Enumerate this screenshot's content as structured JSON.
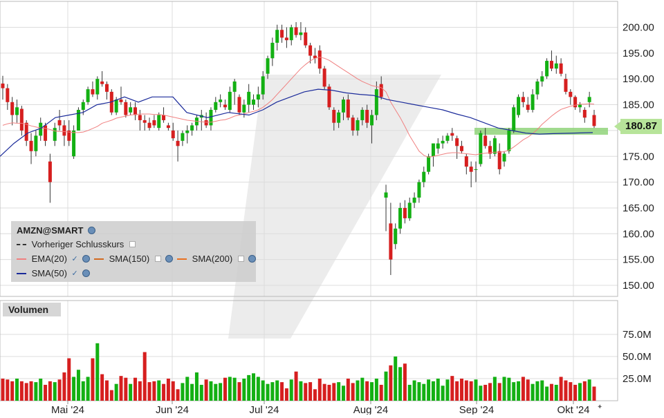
{
  "chart_data": {
    "type": "candlestick",
    "symbol": "AMZN@SMART",
    "last_price_label": "180.87",
    "price_axis": {
      "ylim": [
        147,
        202
      ],
      "ticks": [
        "150.00",
        "155.00",
        "160.00",
        "165.00",
        "170.00",
        "175.00",
        "180.00",
        "185.00",
        "190.00",
        "195.00",
        "200.00"
      ]
    },
    "volume_axis": {
      "ylim": [
        0,
        95
      ],
      "ticks": [
        "25.0M",
        "50.0M",
        "75.0M"
      ]
    },
    "volume_title": "Volumen",
    "x_labels": [
      "Mai '24",
      "Jun '24",
      "Jul '24",
      "Aug '24",
      "Sep '24",
      "Okt '24"
    ],
    "legend": {
      "title": "AMZN@SMART",
      "prev_close": "Vorheriger Schlusskurs",
      "ema20": "EMA(20)",
      "sma150": "SMA(150)",
      "sma200": "SMA(200)",
      "sma50": "SMA(50)"
    },
    "colors": {
      "up": "#13b013",
      "down": "#d61f1f",
      "ema20": "#f08080",
      "sma50": "#1a2a9a",
      "grid": "#dcdcdc"
    },
    "candles": [
      [
        189.1,
        190.6,
        186.0,
        188.2
      ],
      [
        188.2,
        189.0,
        184.0,
        185.5
      ],
      [
        185.5,
        186.5,
        181.0,
        183.0
      ],
      [
        183.0,
        186.0,
        181.5,
        184.5
      ],
      [
        184.2,
        184.8,
        179.0,
        180.0
      ],
      [
        181.5,
        182.0,
        177.0,
        178.0
      ],
      [
        178.0,
        179.5,
        173.5,
        176.0
      ],
      [
        176.0,
        180.0,
        175.0,
        179.0
      ],
      [
        179.0,
        182.5,
        178.0,
        181.5
      ],
      [
        181.0,
        181.5,
        177.0,
        178.0
      ],
      [
        174.0,
        175.5,
        166.0,
        170.0
      ],
      [
        178.0,
        181.5,
        177.0,
        180.5
      ],
      [
        182.0,
        184.0,
        180.0,
        181.0
      ],
      [
        181.0,
        182.0,
        177.0,
        179.0
      ],
      [
        180.0,
        182.0,
        177.0,
        178.0
      ],
      [
        175.0,
        181.0,
        174.5,
        180.0
      ],
      [
        180.0,
        184.5,
        180.0,
        184.0
      ],
      [
        184.0,
        186.0,
        183.0,
        185.5
      ],
      [
        185.5,
        188.5,
        185.0,
        188.0
      ],
      [
        188.0,
        189.5,
        186.5,
        187.0
      ],
      [
        187.0,
        190.5,
        186.0,
        190.0
      ],
      [
        189.5,
        191.5,
        188.5,
        189.0
      ],
      [
        189.0,
        189.5,
        186.0,
        187.5
      ],
      [
        187.5,
        188.0,
        183.0,
        183.5
      ],
      [
        183.5,
        186.5,
        183.0,
        186.0
      ],
      [
        186.0,
        188.5,
        185.0,
        185.5
      ],
      [
        185.5,
        186.0,
        182.5,
        183.0
      ],
      [
        183.5,
        185.5,
        183.0,
        184.5
      ],
      [
        184.5,
        185.5,
        182.0,
        183.0
      ],
      [
        183.0,
        184.0,
        180.0,
        182.0
      ],
      [
        182.0,
        183.0,
        180.0,
        181.5
      ],
      [
        181.5,
        182.5,
        180.0,
        180.5
      ],
      [
        182.0,
        183.0,
        180.5,
        181.0
      ],
      [
        180.5,
        183.5,
        180.0,
        183.0
      ],
      [
        183.0,
        184.5,
        181.5,
        182.0
      ],
      [
        181.0,
        181.5,
        180.0,
        180.5
      ],
      [
        180.0,
        181.5,
        178.0,
        178.5
      ],
      [
        178.0,
        180.0,
        174.0,
        177.0
      ],
      [
        178.0,
        180.0,
        177.0,
        179.5
      ],
      [
        179.5,
        181.0,
        177.5,
        180.0
      ],
      [
        180.0,
        181.5,
        179.0,
        181.0
      ],
      [
        181.0,
        183.0,
        180.0,
        182.5
      ],
      [
        182.5,
        184.0,
        180.0,
        183.0
      ],
      [
        182.0,
        183.5,
        180.5,
        181.0
      ],
      [
        181.0,
        184.5,
        180.0,
        184.0
      ],
      [
        184.0,
        186.5,
        183.5,
        185.5
      ],
      [
        185.5,
        187.0,
        184.5,
        186.0
      ],
      [
        185.0,
        186.0,
        184.0,
        184.5
      ],
      [
        184.0,
        188.5,
        183.5,
        187.5
      ],
      [
        187.5,
        190.0,
        185.0,
        189.5
      ],
      [
        186.5,
        187.0,
        183.0,
        183.5
      ],
      [
        183.5,
        186.0,
        182.5,
        185.0
      ],
      [
        185.0,
        189.0,
        183.5,
        187.5
      ],
      [
        185.0,
        187.0,
        184.0,
        186.0
      ],
      [
        186.0,
        188.5,
        184.5,
        187.0
      ],
      [
        187.0,
        191.5,
        186.0,
        190.5
      ],
      [
        191.0,
        194.5,
        190.0,
        194.0
      ],
      [
        194.0,
        198.0,
        192.5,
        197.0
      ],
      [
        197.0,
        200.5,
        195.5,
        199.5
      ],
      [
        199.5,
        200.5,
        197.0,
        198.0
      ],
      [
        198.0,
        200.0,
        196.0,
        197.5
      ],
      [
        197.5,
        200.5,
        196.5,
        200.0
      ],
      [
        200.0,
        201.0,
        198.0,
        198.5
      ],
      [
        198.5,
        201.0,
        197.5,
        199.0
      ],
      [
        199.0,
        200.0,
        196.0,
        196.5
      ],
      [
        196.5,
        197.0,
        193.0,
        194.5
      ],
      [
        194.5,
        196.0,
        193.0,
        194.0
      ],
      [
        195.5,
        196.5,
        191.0,
        192.0
      ],
      [
        192.0,
        192.5,
        188.0,
        188.5
      ],
      [
        188.5,
        189.0,
        184.0,
        184.5
      ],
      [
        184.0,
        184.5,
        180.0,
        181.5
      ],
      [
        181.5,
        184.0,
        180.5,
        183.5
      ],
      [
        183.5,
        186.5,
        182.0,
        186.0
      ],
      [
        186.0,
        187.0,
        182.0,
        182.5
      ],
      [
        182.5,
        183.0,
        179.0,
        180.0
      ],
      [
        180.0,
        182.5,
        179.0,
        182.0
      ],
      [
        182.0,
        184.5,
        181.0,
        184.0
      ],
      [
        184.0,
        185.0,
        180.5,
        181.5
      ],
      [
        181.0,
        184.0,
        177.5,
        183.0
      ],
      [
        183.0,
        189.5,
        182.0,
        188.0
      ],
      [
        189.0,
        190.5,
        186.0,
        186.5
      ],
      [
        167.0,
        169.5,
        160.5,
        168.0
      ],
      [
        162.0,
        166.0,
        152.0,
        155.0
      ],
      [
        158.0,
        162.0,
        157.0,
        161.0
      ],
      [
        161.0,
        166.0,
        160.0,
        165.0
      ],
      [
        165.0,
        166.5,
        162.0,
        163.0
      ],
      [
        163.0,
        167.0,
        162.5,
        166.0
      ],
      [
        166.0,
        168.0,
        165.0,
        167.0
      ],
      [
        167.0,
        170.5,
        166.0,
        170.0
      ],
      [
        170.0,
        173.0,
        169.0,
        172.0
      ],
      [
        172.0,
        175.5,
        171.5,
        175.0
      ],
      [
        175.0,
        177.5,
        173.0,
        177.5
      ],
      [
        176.5,
        178.5,
        175.5,
        177.5
      ],
      [
        177.5,
        179.0,
        176.5,
        178.0
      ],
      [
        178.0,
        179.5,
        177.5,
        179.0
      ],
      [
        179.5,
        180.5,
        178.0,
        179.0
      ],
      [
        178.5,
        179.0,
        174.5,
        177.0
      ],
      [
        177.0,
        178.0,
        175.5,
        176.0
      ],
      [
        175.0,
        175.5,
        171.5,
        173.0
      ],
      [
        173.0,
        174.0,
        169.0,
        172.0
      ],
      [
        172.5,
        174.0,
        170.0,
        172.5
      ],
      [
        173.5,
        180.0,
        173.0,
        179.5
      ],
      [
        179.0,
        180.5,
        176.5,
        177.0
      ],
      [
        177.0,
        178.0,
        174.5,
        175.5
      ],
      [
        175.5,
        179.0,
        175.0,
        178.5
      ],
      [
        176.0,
        177.5,
        171.5,
        172.5
      ],
      [
        174.0,
        176.0,
        173.0,
        175.5
      ],
      [
        176.0,
        180.5,
        175.5,
        180.0
      ],
      [
        180.0,
        185.0,
        179.5,
        184.5
      ],
      [
        183.0,
        187.0,
        182.5,
        186.5
      ],
      [
        186.5,
        187.5,
        184.5,
        185.5
      ],
      [
        185.0,
        186.5,
        183.5,
        184.0
      ],
      [
        184.0,
        188.0,
        183.5,
        187.0
      ],
      [
        187.0,
        190.0,
        186.0,
        189.5
      ],
      [
        189.5,
        191.5,
        188.5,
        190.5
      ],
      [
        190.5,
        194.0,
        190.0,
        193.5
      ],
      [
        193.5,
        195.5,
        191.5,
        192.0
      ],
      [
        192.0,
        194.5,
        191.0,
        193.0
      ],
      [
        193.0,
        194.0,
        190.5,
        191.0
      ],
      [
        190.0,
        191.0,
        187.0,
        187.5
      ],
      [
        187.5,
        188.0,
        185.0,
        186.5
      ],
      [
        186.5,
        186.8,
        184.0,
        184.5
      ],
      [
        184.5,
        185.5,
        183.5,
        185.0
      ],
      [
        184.0,
        184.5,
        181.5,
        182.5
      ],
      [
        185.5,
        187.5,
        184.5,
        186.5
      ],
      [
        183.0,
        184.0,
        180.5,
        180.87
      ]
    ],
    "volume": [
      25,
      24,
      22,
      25,
      22,
      20,
      22,
      21,
      25,
      18,
      22,
      21,
      24,
      32,
      48,
      27,
      35,
      22,
      27,
      48,
      65,
      30,
      23,
      12,
      19,
      28,
      26,
      19,
      26,
      22,
      55,
      21,
      22,
      23,
      19,
      25,
      22,
      13,
      20,
      27,
      19,
      32,
      18,
      24,
      22,
      19,
      20,
      26,
      27,
      26,
      21,
      25,
      29,
      31,
      27,
      23,
      19,
      21,
      23,
      21,
      14,
      24,
      33,
      22,
      20,
      21,
      13,
      25,
      19,
      18,
      20,
      21,
      17,
      25,
      20,
      23,
      26,
      22,
      21,
      25,
      18,
      33,
      40,
      50,
      38,
      42,
      18,
      23,
      21,
      19,
      24,
      22,
      25,
      17,
      24,
      28,
      22,
      25,
      23,
      22,
      24,
      17,
      18,
      20,
      27,
      20,
      27,
      26,
      21,
      22,
      27,
      24,
      19,
      22,
      23,
      16,
      19,
      18,
      27,
      23,
      21,
      18,
      20,
      22,
      24,
      16,
      21,
      21
    ],
    "ema20": [
      181.0,
      181.3,
      181.5,
      181.4,
      181.4,
      181.2,
      180.9,
      180.7,
      180.5,
      180.4,
      180.2,
      179.9,
      179.8,
      179.8,
      179.7,
      179.6,
      179.6,
      179.7,
      180.0,
      180.4,
      180.8,
      181.4,
      181.7,
      182.0,
      182.4,
      182.6,
      182.8,
      183.0,
      183.1,
      183.2,
      183.2,
      183.2,
      183.1,
      183.1,
      183.0,
      182.8,
      182.6,
      182.4,
      182.2,
      182.0,
      181.9,
      181.8,
      181.7,
      181.6,
      181.6,
      181.8,
      182.0,
      182.1,
      182.4,
      182.8,
      183.0,
      183.2,
      183.5,
      183.7,
      184.0,
      184.5,
      185.2,
      186.0,
      187.0,
      188.0,
      189.0,
      190.0,
      191.0,
      192.0,
      192.8,
      193.5,
      194.0,
      194.2,
      194.0,
      193.6,
      193.0,
      192.4,
      191.8,
      191.2,
      190.6,
      190.0,
      189.5,
      189.1,
      188.7,
      188.5,
      188.3,
      187.5,
      185.5,
      184.0,
      182.5,
      180.8,
      179.0,
      177.5,
      176.0,
      175.2,
      174.8,
      175.0,
      175.2,
      175.4,
      175.6,
      175.7,
      175.7,
      175.6,
      175.5,
      175.4,
      175.3,
      175.5,
      175.6,
      175.7,
      175.8,
      175.8,
      175.9,
      176.2,
      176.8,
      177.5,
      178.2,
      178.7,
      179.4,
      180.2,
      181.2,
      182.0,
      182.8,
      183.5,
      184.1,
      184.4,
      184.7,
      184.9,
      185.1,
      185.1,
      185.2,
      185.1
    ]
  },
  "sma50": [
    [
      0,
      175.0
    ],
    [
      20,
      177.5
    ],
    [
      40,
      179.5
    ],
    [
      60,
      180.5
    ],
    [
      80,
      182.5
    ],
    [
      100,
      183.0
    ],
    [
      120,
      183.5
    ],
    [
      140,
      185.0
    ],
    [
      160,
      185.5
    ],
    [
      180,
      186.5
    ],
    [
      200,
      185.5
    ],
    [
      220,
      186.5
    ],
    [
      250,
      186.5
    ],
    [
      270,
      183.5
    ],
    [
      300,
      182.5
    ],
    [
      330,
      183.5
    ],
    [
      360,
      183.0
    ],
    [
      380,
      184.0
    ],
    [
      400,
      185.5
    ],
    [
      420,
      186.5
    ],
    [
      440,
      187.5
    ],
    [
      460,
      188.0
    ],
    [
      480,
      187.8
    ],
    [
      500,
      187.3
    ],
    [
      520,
      187.0
    ],
    [
      540,
      186.8
    ],
    [
      560,
      186.0
    ],
    [
      580,
      185.5
    ],
    [
      600,
      185.0
    ],
    [
      620,
      184.5
    ],
    [
      640,
      184.0
    ],
    [
      660,
      183.2
    ],
    [
      680,
      182.5
    ],
    [
      700,
      181.5
    ],
    [
      720,
      180.5
    ],
    [
      740,
      180.0
    ],
    [
      760,
      179.5
    ],
    [
      780,
      179.3
    ],
    [
      800,
      179.4
    ],
    [
      830,
      179.5
    ],
    [
      857,
      179.6
    ]
  ],
  "prev_close_level": "180.87"
}
